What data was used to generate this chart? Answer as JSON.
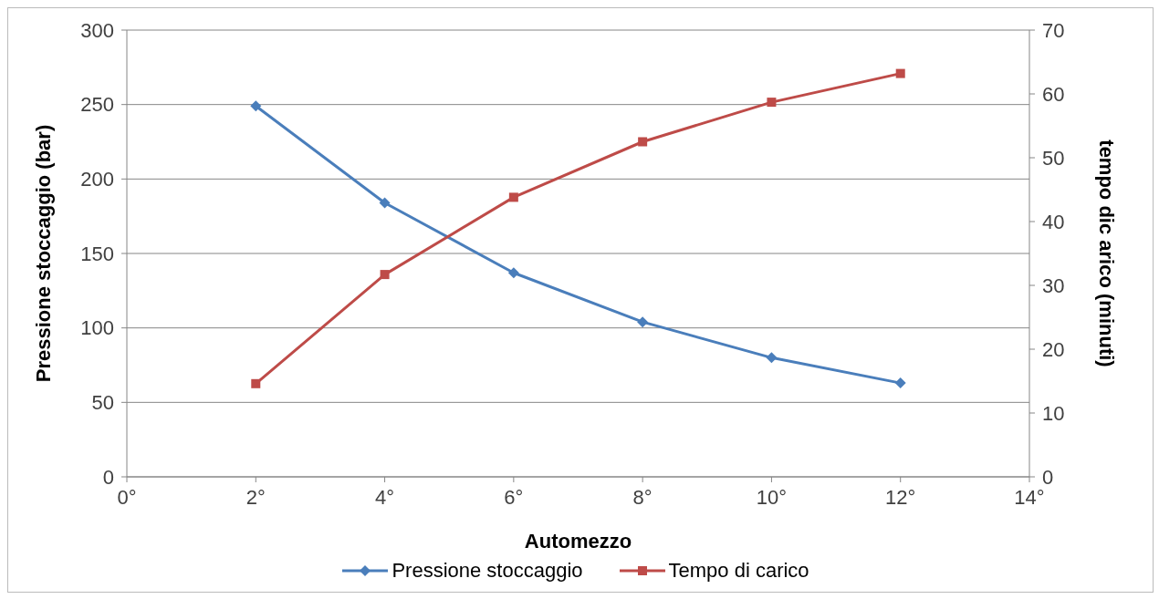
{
  "chart_data": {
    "type": "line",
    "xlabel": "Automezzo",
    "ylabel": "Pressione stoccaggio (bar)",
    "y2label": "tempo dic arico (minuti)",
    "x": [
      2,
      4,
      6,
      8,
      10,
      12
    ],
    "series": [
      {
        "name": "Pressione stoccaggio",
        "color": "#4a7ebb",
        "values": [
          249,
          184,
          137,
          104,
          80,
          63
        ],
        "marker": "diamond"
      },
      {
        "name": "Tempo di carico",
        "color": "#be4b48",
        "values": [
          14.6,
          31.7,
          43.8,
          52.5,
          58.7,
          63.2
        ],
        "marker": "square",
        "axis": "y2"
      }
    ],
    "xlim": [
      0,
      14
    ],
    "xticks": [
      {
        "value": 0,
        "label": "0°"
      },
      {
        "value": 2,
        "label": "2°"
      },
      {
        "value": 4,
        "label": "4°"
      },
      {
        "value": 6,
        "label": "6°"
      },
      {
        "value": 8,
        "label": "8°"
      },
      {
        "value": 10,
        "label": "10°"
      },
      {
        "value": 12,
        "label": "12°"
      },
      {
        "value": 14,
        "label": "14°"
      }
    ],
    "ylim": [
      0,
      300
    ],
    "yticks": [
      0,
      50,
      100,
      150,
      200,
      250,
      300
    ],
    "y2lim": [
      0,
      70
    ],
    "y2ticks": [
      0,
      10,
      20,
      30,
      40,
      50,
      60,
      70
    ],
    "grid": "y",
    "legend": "bottom",
    "line_style": "solid"
  }
}
